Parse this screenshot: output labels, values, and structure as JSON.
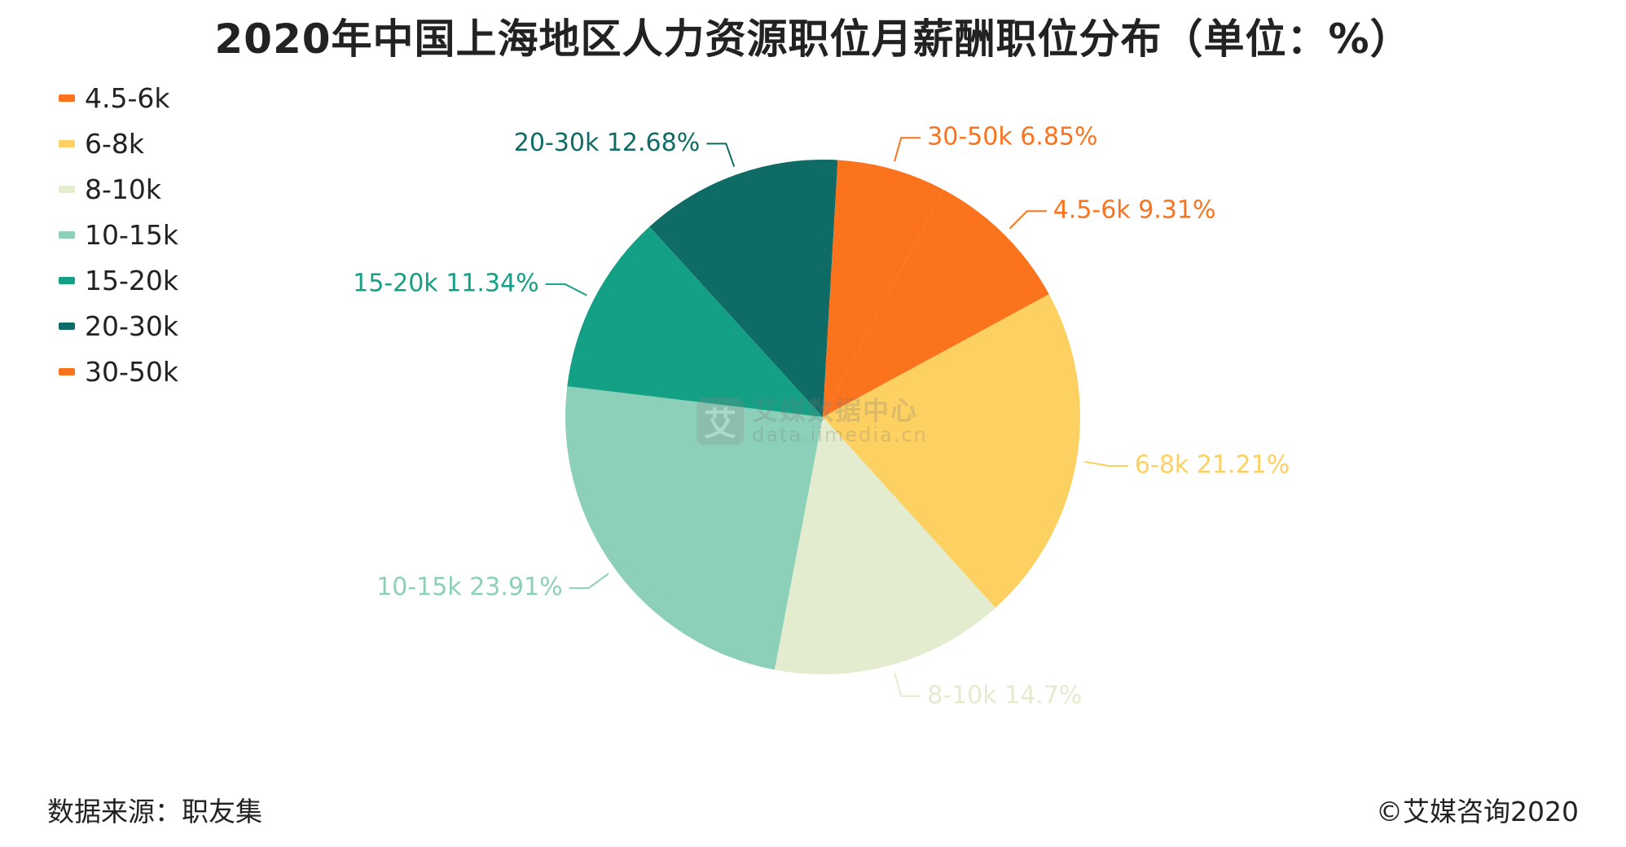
{
  "title": "2020年中国上海地区人力资源职位月薪酬职位分布（单位：%）",
  "footer": {
    "source": "数据来源：职友集",
    "copyright": "©艾媒咨询2020"
  },
  "watermark": {
    "badge": "艾",
    "name": "艾媒数据中心",
    "url": "data.iimedia.cn"
  },
  "chart_data": {
    "type": "pie",
    "title": "2020年中国上海地区人力资源职位月薪酬职位分布（单位：%）",
    "unit": "%",
    "legend_position": "top-left",
    "categories": [
      "4.5-6k",
      "6-8k",
      "8-10k",
      "10-15k",
      "15-20k",
      "20-30k",
      "30-50k"
    ],
    "values": [
      9.31,
      21.21,
      14.7,
      23.91,
      11.34,
      12.68,
      6.85
    ],
    "labels": [
      "4.5-6k 9.31%",
      "6-8k 21.21%",
      "8-10k 14.7%",
      "10-15k 23.91%",
      "15-20k 11.34%",
      "20-30k 12.68%",
      "30-50k 6.85%"
    ],
    "colors": [
      "#fc731d",
      "#fdd062",
      "#e3eccf",
      "#8dd0b9",
      "#14a085",
      "#0f6b65",
      "#fc731d"
    ]
  }
}
